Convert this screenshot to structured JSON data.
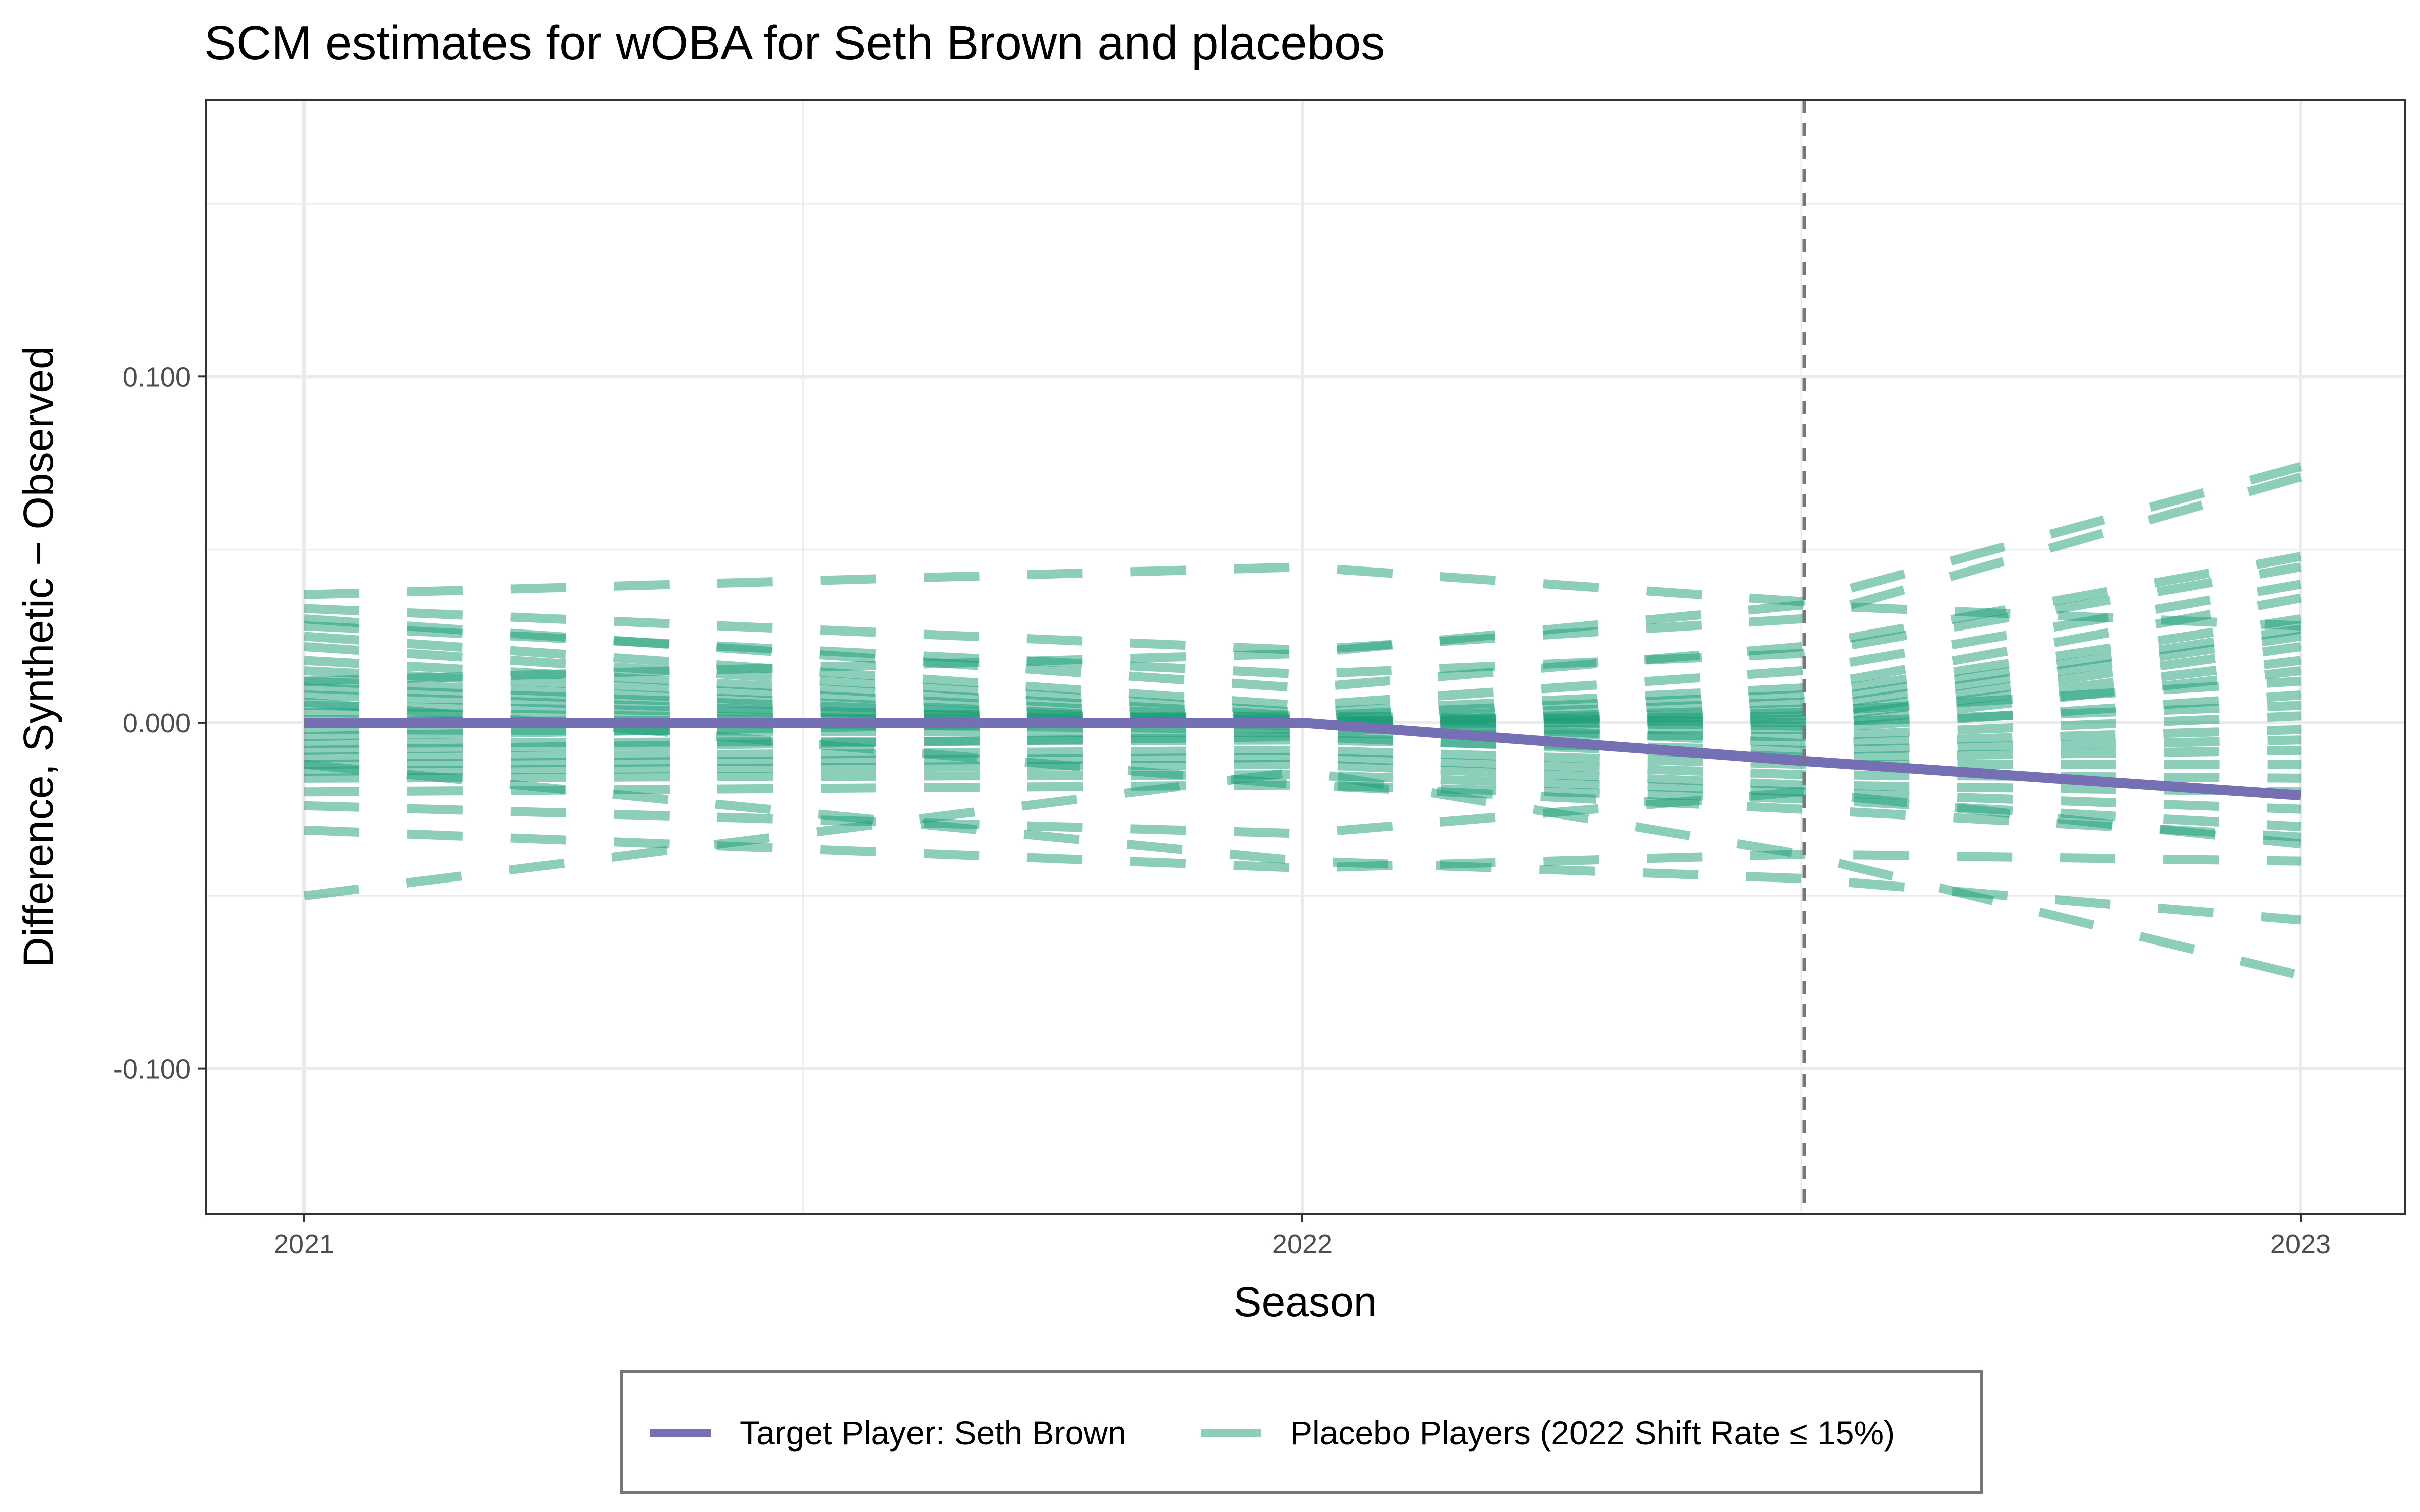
{
  "chart_data": {
    "type": "line",
    "title": "SCM estimates for wOBA for Seth Brown and placebos",
    "xlabel": "Season",
    "ylabel": "Difference, Synthetic − Observed",
    "x_ticks": [
      "2021",
      "2022",
      "2023"
    ],
    "y_ticks": [
      "0.100",
      "0.000",
      "-0.100"
    ],
    "x_range": [
      2021,
      2023
    ],
    "ylim": [
      -0.142,
      0.18
    ],
    "grid": true,
    "reference_line": {
      "x": 2022.5,
      "style": "dashed",
      "color": "#777777"
    },
    "legend": {
      "position": "bottom",
      "items": [
        {
          "label": "Target Player: Seth Brown",
          "color": "#7570b3",
          "style": "solid"
        },
        {
          "label": "Placebo Players (2022 Shift Rate ≤ 15%)",
          "color": "#1b9e77",
          "style": "dashed"
        }
      ]
    },
    "target_series": {
      "name": "Target Player: Seth Brown",
      "x": [
        2021,
        2022,
        2022.5,
        2023
      ],
      "y": [
        0.0,
        0.0,
        -0.011,
        -0.021
      ]
    },
    "placebo_series": [
      {
        "y": [
          0.037,
          0.045,
          0.035,
          0.074
        ]
      },
      {
        "y": [
          0.033,
          0.021,
          0.03,
          0.071
        ]
      },
      {
        "y": [
          0.03,
          0.01,
          0.022,
          0.048
        ]
      },
      {
        "y": [
          0.028,
          0.014,
          0.02,
          0.045
        ]
      },
      {
        "y": [
          0.025,
          0.005,
          0.015,
          0.04
        ]
      },
      {
        "y": [
          0.022,
          0.003,
          0.01,
          0.036
        ]
      },
      {
        "y": [
          0.018,
          0.002,
          0.008,
          0.03
        ]
      },
      {
        "y": [
          0.015,
          0.001,
          0.006,
          0.027
        ]
      },
      {
        "y": [
          0.012,
          0.0,
          0.004,
          0.025
        ]
      },
      {
        "y": [
          0.01,
          0.0,
          0.002,
          0.022
        ]
      },
      {
        "y": [
          0.008,
          -0.001,
          0.001,
          0.018
        ]
      },
      {
        "y": [
          0.005,
          0.001,
          -0.001,
          0.015
        ]
      },
      {
        "y": [
          0.003,
          0.0,
          0.003,
          0.012
        ]
      },
      {
        "y": [
          0.001,
          -0.002,
          -0.002,
          0.008
        ]
      },
      {
        "y": [
          0.0,
          0.002,
          0.0,
          0.005
        ]
      },
      {
        "y": [
          -0.002,
          -0.003,
          -0.004,
          0.002
        ]
      },
      {
        "y": [
          -0.004,
          0.001,
          -0.006,
          -0.002
        ]
      },
      {
        "y": [
          -0.006,
          -0.005,
          -0.008,
          -0.005
        ]
      },
      {
        "y": [
          -0.008,
          -0.004,
          -0.01,
          -0.008
        ]
      },
      {
        "y": [
          -0.01,
          -0.008,
          -0.012,
          -0.012
        ]
      },
      {
        "y": [
          -0.012,
          -0.01,
          -0.015,
          -0.016
        ]
      },
      {
        "y": [
          -0.014,
          -0.012,
          -0.018,
          -0.02
        ]
      },
      {
        "y": [
          -0.016,
          -0.015,
          -0.02,
          -0.025
        ]
      },
      {
        "y": [
          -0.02,
          -0.018,
          -0.022,
          -0.03
        ]
      },
      {
        "y": [
          -0.024,
          -0.032,
          -0.02,
          -0.035
        ]
      },
      {
        "y": [
          -0.031,
          -0.042,
          -0.038,
          -0.04
        ]
      },
      {
        "y": [
          -0.012,
          -0.04,
          -0.045,
          -0.057
        ]
      },
      {
        "y": [
          -0.05,
          -0.014,
          -0.038,
          -0.073
        ]
      },
      {
        "y": [
          0.006,
          -0.018,
          -0.025,
          -0.033
        ]
      },
      {
        "y": [
          0.012,
          0.02,
          0.034,
          0.028
        ]
      }
    ]
  }
}
